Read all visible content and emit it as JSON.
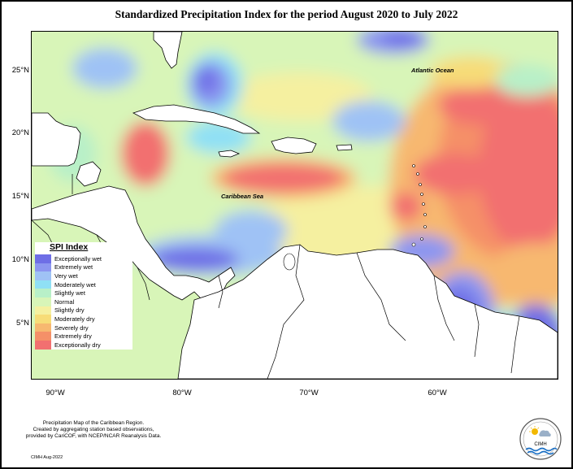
{
  "title": "Standardized Precipitation Index for the period August 2020 to July 2022",
  "map": {
    "ocean_labels": [
      "Atlantic Ocean",
      "Caribbean Sea"
    ],
    "lat_ticks": [
      "25°N",
      "20°N",
      "15°N",
      "10°N",
      "5°N"
    ],
    "lon_ticks": [
      "90°W",
      "80°W",
      "70°W",
      "60°W"
    ]
  },
  "legend": {
    "title": "SPI Index",
    "items": [
      {
        "label": "Exceptionally wet",
        "color": "#6e6ee6"
      },
      {
        "label": "Extremely wet",
        "color": "#8c96f0"
      },
      {
        "label": "Very wet",
        "color": "#9fc2f5"
      },
      {
        "label": "Moderately wet",
        "color": "#8fe0f5"
      },
      {
        "label": "Slightly wet",
        "color": "#b8f0c8"
      },
      {
        "label": "Normal",
        "color": "#d8f5b8"
      },
      {
        "label": "Slightly dry",
        "color": "#f5f0a0"
      },
      {
        "label": "Moderately dry",
        "color": "#f7dc78"
      },
      {
        "label": "Severely dry",
        "color": "#f7b870"
      },
      {
        "label": "Extremely dry",
        "color": "#f59068"
      },
      {
        "label": "Exceptionally dry",
        "color": "#f27070"
      }
    ]
  },
  "credit": {
    "line1": "Precipitation Map of the Caribbean Region.",
    "line2": "Created by aggregating station based observations,",
    "line3": "provided by CariCOF, with NCEP/NCAR Reanalysis Data."
  },
  "stamp": "CIMH Aug-2022",
  "logo_text": "CIMH"
}
